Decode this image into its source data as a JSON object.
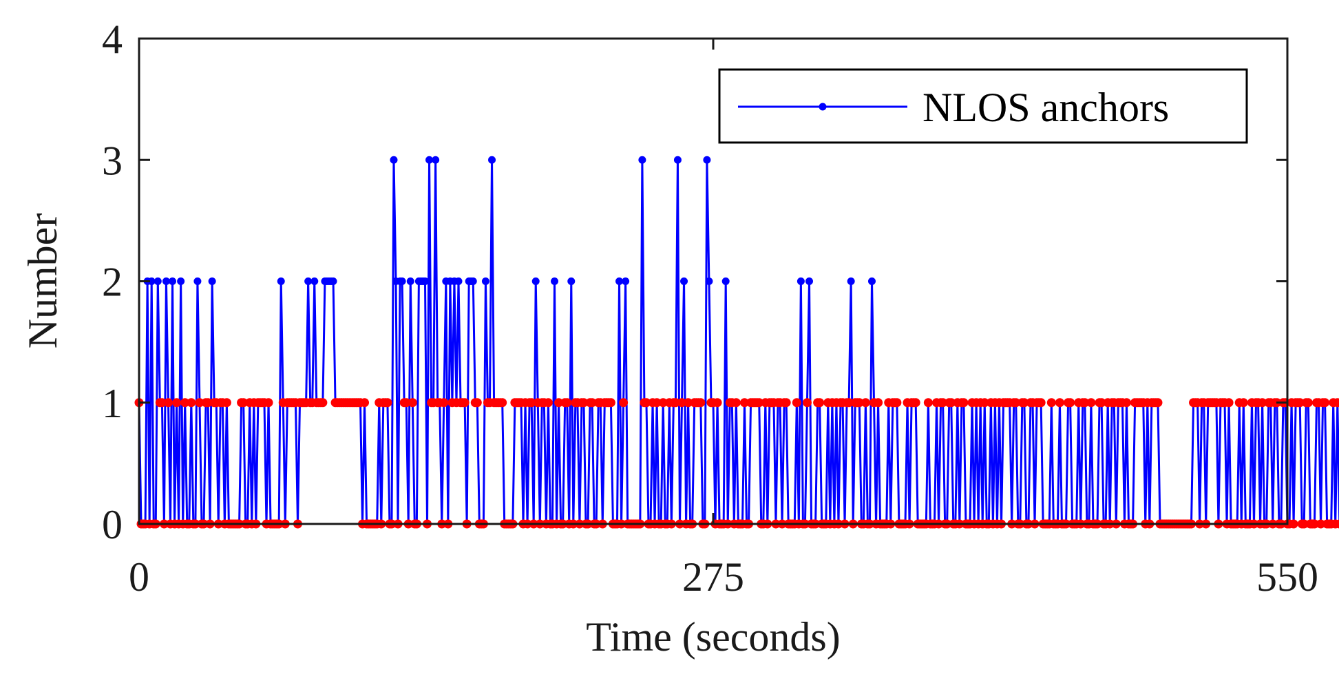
{
  "chart_data": {
    "type": "line",
    "title": "",
    "xlabel": "Time (seconds)",
    "ylabel": "Number",
    "xlim": [
      0,
      550
    ],
    "ylim": [
      0,
      4
    ],
    "xticks": [
      "0",
      "275",
      "550"
    ],
    "yticks": [
      "0",
      "1",
      "2",
      "3",
      "4"
    ],
    "grid": false,
    "legend": {
      "position": "top-right",
      "entries": [
        "NLOS anchors"
      ]
    },
    "colors": {
      "series": "#0000ff",
      "markers": "#ff0000",
      "axis": "#1a1a1a"
    },
    "series": [
      {
        "name": "NLOS anchors",
        "x_start": 0,
        "x_step": 1,
        "values": [
          1,
          0,
          0,
          0,
          2,
          0,
          2,
          0,
          0,
          2,
          1,
          1,
          0,
          2,
          1,
          0,
          2,
          0,
          1,
          0,
          2,
          0,
          1,
          0,
          0,
          1,
          0,
          0,
          2,
          1,
          0,
          0,
          1,
          1,
          0,
          2,
          1,
          1,
          0,
          1,
          1,
          0,
          1,
          0,
          0,
          0,
          0,
          0,
          0,
          1,
          1,
          0,
          0,
          1,
          0,
          1,
          0,
          1,
          1,
          1,
          1,
          0,
          1,
          0,
          0,
          0,
          0,
          0,
          2,
          1,
          0,
          1,
          1,
          1,
          1,
          1,
          0,
          1,
          1,
          1,
          1,
          2,
          1,
          1,
          2,
          1,
          1,
          1,
          1,
          2,
          2,
          2,
          2,
          2,
          1,
          1,
          1,
          1,
          1,
          1,
          1,
          1,
          1,
          1,
          1,
          1,
          1,
          0,
          1,
          0,
          0,
          0,
          0,
          0,
          0,
          1,
          0,
          1,
          1,
          1,
          0,
          0,
          3,
          2,
          0,
          2,
          2,
          1,
          1,
          0,
          2,
          1,
          0,
          0,
          2,
          2,
          2,
          2,
          0,
          3,
          1,
          1,
          3,
          1,
          1,
          0,
          1,
          2,
          0,
          2,
          1,
          2,
          1,
          2,
          1,
          1,
          1,
          0,
          2,
          2,
          2,
          1,
          1,
          0,
          0,
          0,
          2,
          1,
          1,
          3,
          1,
          1,
          1,
          1,
          1,
          0,
          0,
          0,
          0,
          0,
          1,
          1,
          1,
          1,
          0,
          1,
          0,
          1,
          1,
          0,
          2,
          1,
          0,
          1,
          1,
          0,
          1,
          0,
          0,
          2,
          0,
          1,
          0,
          0,
          1,
          1,
          0,
          2,
          0,
          1,
          1,
          0,
          1,
          1,
          0,
          0,
          1,
          1,
          0,
          0,
          1,
          1,
          0,
          1,
          1,
          1,
          1,
          0,
          0,
          0,
          2,
          0,
          1,
          2,
          0,
          0,
          0,
          0,
          0,
          0,
          0,
          3,
          1,
          1,
          0,
          0,
          1,
          0,
          1,
          0,
          0,
          1,
          0,
          0,
          1,
          0,
          1,
          1,
          3,
          0,
          1,
          2,
          0,
          1,
          0,
          0,
          1,
          1,
          1,
          1,
          0,
          0,
          3,
          2,
          1,
          1,
          0,
          1,
          0,
          0,
          0,
          2,
          0,
          1,
          1,
          0,
          1,
          0,
          0,
          0,
          1,
          0,
          0,
          1,
          1,
          1,
          1,
          1,
          0,
          0,
          1,
          0,
          1,
          1,
          1,
          0,
          1,
          1,
          0,
          1,
          1,
          0,
          0,
          0,
          0,
          1,
          0,
          2,
          0,
          0,
          1,
          2,
          0,
          0,
          0,
          1,
          1,
          0,
          0,
          0,
          1,
          0,
          1,
          0,
          1,
          0,
          1,
          1,
          0,
          1,
          1,
          2,
          0,
          1,
          1,
          1,
          0,
          0,
          1,
          0,
          0,
          2,
          1,
          0,
          1,
          0,
          0,
          0,
          0,
          1,
          0,
          1,
          1,
          1,
          0,
          0,
          0,
          0,
          1,
          0,
          1,
          1,
          1,
          0,
          0,
          0,
          0,
          0,
          1,
          0,
          0,
          0,
          1,
          0,
          1,
          1,
          0,
          0,
          1,
          1,
          0,
          0,
          1,
          0,
          1,
          1,
          0,
          0,
          0,
          1,
          0,
          1,
          0,
          1,
          0,
          1,
          0,
          0,
          1,
          0,
          1,
          0,
          1,
          0,
          1,
          1,
          1,
          1,
          0,
          1,
          1,
          0,
          0,
          1,
          1,
          0,
          0,
          1,
          1,
          0,
          1,
          1,
          1,
          0,
          0,
          0,
          0,
          1,
          0,
          0,
          0,
          1,
          0,
          0,
          0,
          1,
          1,
          0,
          0,
          0,
          1,
          0,
          1,
          1,
          0,
          0,
          1,
          0,
          0,
          0,
          1,
          1,
          0,
          0,
          1,
          0,
          1,
          1,
          0,
          1,
          1,
          1,
          0,
          1,
          0,
          0,
          0,
          1,
          1,
          1,
          1,
          1,
          0,
          1,
          0,
          1,
          1,
          1,
          1,
          0,
          0,
          0,
          0,
          0,
          0,
          0,
          0,
          0,
          0,
          0,
          0,
          0,
          0,
          0,
          0,
          1,
          1,
          1,
          0,
          1,
          1,
          0,
          1,
          1,
          1,
          1,
          1,
          0,
          1,
          1,
          1,
          0,
          1,
          0,
          0,
          0,
          0,
          1,
          0,
          1,
          0,
          0,
          0,
          1,
          0,
          1,
          1,
          0,
          1,
          0,
          0,
          1,
          1,
          0,
          1,
          1,
          0,
          0,
          1,
          1,
          0,
          0,
          1,
          0,
          1,
          1,
          1,
          0,
          0,
          1,
          1,
          0,
          0,
          0,
          1,
          1,
          0,
          1,
          1,
          0,
          0,
          0,
          1,
          0,
          1,
          0
        ]
      }
    ]
  }
}
